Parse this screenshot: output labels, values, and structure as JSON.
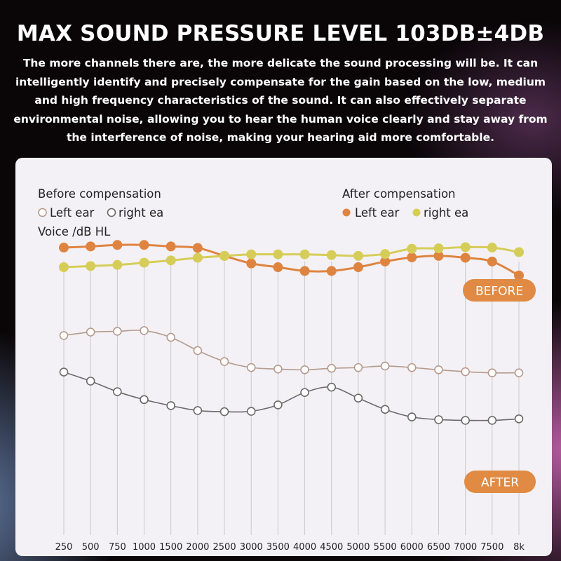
{
  "headline": "MAX SOUND PRESSURE LEVEL 103DB±4DB",
  "intro": "The more channels there are, the more delicate the sound processing will be. It can intelligently identify and precisely compensate for the gain based on the low, medium and high frequency characteristics of the sound. It can also effectively separate environmental noise, allowing you to hear the human voice clearly and stay away from the interference of noise, making your hearing aid more comfortable.",
  "colors": {
    "before_left": "#b69a8c",
    "before_right": "#6a6a6a",
    "after_left": "#df8440",
    "after_right": "#d6cd58",
    "pill": "#e08a44",
    "grid": "#c9c9c9"
  },
  "chart_data": {
    "type": "line",
    "ylabel": "Voice /dB HL",
    "y_axis_ticks": "none",
    "ylim": [
      0,
      100
    ],
    "grid": "vertical only",
    "legend_groups": [
      {
        "title": "Before compensation",
        "entries": [
          "Left ear",
          "right ea"
        ],
        "marker": "hollow circle"
      },
      {
        "title": "After compensation",
        "entries": [
          "Left ear",
          "right ea"
        ],
        "marker": "filled circle"
      }
    ],
    "categories": [
      "250",
      "500",
      "750",
      "1000",
      "1500",
      "2000",
      "2500",
      "3000",
      "3500",
      "4000",
      "4500",
      "5000",
      "5500",
      "6000",
      "6500",
      "7000",
      "7500",
      "8k"
    ],
    "series": [
      {
        "name": "Left ear",
        "group": "After compensation",
        "color_key": "after_left",
        "marker": "filled",
        "values": [
          76.2,
          76.5,
          76.9,
          76.9,
          76.5,
          76.1,
          74.0,
          72.0,
          71.0,
          70.0,
          70.0,
          71.0,
          72.5,
          73.6,
          74.0,
          73.5,
          72.5,
          68.8
        ]
      },
      {
        "name": "right ea",
        "group": "After compensation",
        "color_key": "after_right",
        "marker": "filled",
        "values": [
          71.0,
          71.3,
          71.6,
          72.2,
          72.8,
          73.5,
          74.0,
          74.4,
          74.4,
          74.4,
          74.2,
          74.0,
          74.5,
          75.9,
          76.0,
          76.3,
          76.2,
          75.0
        ]
      },
      {
        "name": "Left ear",
        "group": "Before compensation",
        "color_key": "before_left",
        "marker": "hollow",
        "values": [
          52.9,
          53.8,
          54.0,
          54.2,
          52.4,
          48.9,
          46.0,
          44.4,
          44.0,
          43.8,
          44.2,
          44.4,
          44.8,
          44.4,
          43.8,
          43.3,
          43.0,
          43.0
        ]
      },
      {
        "name": "right ea",
        "group": "Before compensation",
        "color_key": "before_right",
        "marker": "hollow",
        "values": [
          43.2,
          40.8,
          38.0,
          35.9,
          34.3,
          33.0,
          32.7,
          32.8,
          34.5,
          37.8,
          39.2,
          36.3,
          33.3,
          31.3,
          30.6,
          30.4,
          30.4,
          30.8
        ]
      }
    ],
    "annotations": [
      {
        "text": "BEFORE",
        "style": "orange pill"
      },
      {
        "text": "AFTER",
        "style": "orange pill"
      }
    ]
  }
}
